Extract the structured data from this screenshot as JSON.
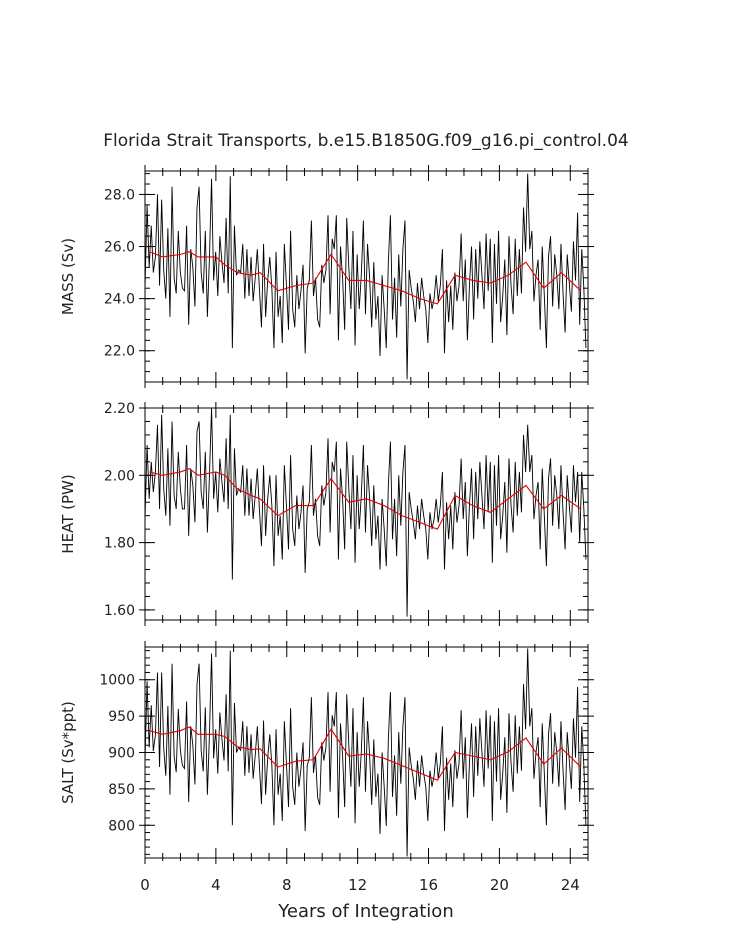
{
  "chart_data": {
    "type": "line",
    "title": "Florida Strait Transports, b.e15.B1850G.f09_g16.pi_control.04",
    "xlabel": "Years of Integration",
    "xlim": [
      0,
      25
    ],
    "xticks": [
      0,
      4,
      8,
      12,
      16,
      20,
      24
    ],
    "colors": {
      "raw": "#000000",
      "smooth": "#e00000"
    },
    "panels": [
      {
        "ylabel": "MASS (Sv)",
        "ylim": [
          20.8,
          28.9
        ],
        "yticks": [
          22.0,
          24.0,
          26.0,
          28.0
        ],
        "yticklabels": [
          "22.0",
          "24.0",
          "26.0",
          "28.0"
        ],
        "series": [
          {
            "values": [
              24.4,
              27.6,
              25.2,
              26.8,
              25.0,
              25.6,
              28.0,
              24.5,
              27.8,
              25.1,
              24.0,
              26.7,
              23.3,
              28.3,
              24.8,
              24.2,
              26.6,
              25.0,
              24.4,
              24.3,
              26.8,
              23.0,
              25.9,
              25.2,
              23.7,
              27.5,
              28.3,
              25.0,
              24.2,
              26.6,
              23.3,
              25.6,
              28.6,
              24.7,
              25.8,
              24.1,
              26.4,
              25.4,
              24.6,
              27.1,
              24.2,
              28.7,
              22.1,
              26.8,
              24.9,
              25.1,
              25.0,
              26.1,
              24.0,
              25.9,
              24.1,
              25.6,
              23.9,
              24.8,
              25.9,
              24.4,
              22.9,
              26.1,
              23.3,
              24.7,
              25.6,
              24.4,
              22.1,
              25.8,
              23.3,
              24.1,
              22.3,
              26.1,
              24.5,
              22.8,
              26.6,
              23.6,
              22.9,
              24.9,
              23.6,
              24.3,
              25.3,
              21.9,
              24.4,
              24.7,
              27.0,
              24.1,
              24.8,
              23.2,
              22.9,
              25.3,
              24.6,
              25.1,
              27.2,
              23.4,
              26.3,
              25.9,
              27.2,
              22.4,
              26.0,
              24.8,
              22.8,
              27.1,
              25.2,
              23.6,
              26.6,
              22.2,
              25.7,
              23.6,
              24.9,
              27.0,
              23.4,
              26.1,
              24.8,
              22.9,
              25.4,
              23.2,
              24.1,
              21.8,
              24.9,
              23.6,
              22.1,
              25.4,
              27.2,
              23.2,
              24.8,
              22.5,
              25.7,
              23.7,
              25.9,
              27.0,
              20.9,
              25.1,
              24.4,
              23.9,
              23.1,
              24.6,
              23.6,
              24.8,
              24.1,
              23.6,
              22.3,
              24.2,
              23.6,
              24.0,
              24.9,
              23.9,
              24.5,
              25.9,
              21.9,
              24.7,
              23.1,
              24.5,
              22.8,
              25.0,
              23.9,
              24.5,
              26.5,
              23.9,
              25.5,
              22.4,
              24.5,
              26.0,
              23.2,
              25.9,
              24.0,
              26.2,
              24.9,
              23.6,
              26.5,
              24.3,
              26.3,
              22.3,
              26.1,
              23.8,
              26.6,
              23.1,
              24.1,
              25.5,
              22.6,
              26.4,
              24.5,
              23.4,
              26.3,
              24.1,
              25.9,
              24.2,
              27.5,
              25.8,
              28.8,
              25.9,
              26.6,
              23.9,
              24.9,
              25.5,
              22.8,
              26.0,
              24.1,
              22.1,
              25.6,
              26.4,
              23.7,
              25.7,
              24.9,
              23.6,
              26.1,
              24.2,
              22.7,
              25.7,
              24.6,
              23.5,
              26.2,
              24.7,
              27.3,
              23.0,
              25.9,
              24.4,
              22.1
            ]
          },
          {
            "x": [
              0.25,
              1.0,
              2.0,
              2.5,
              3.0,
              4.0,
              4.5,
              5.2,
              6.0,
              6.5,
              7.5,
              8.5,
              9.5,
              10.5,
              11.5,
              12.5,
              13.5,
              14.5,
              15.5,
              16.5,
              17.5,
              18.5,
              19.5,
              20.5,
              21.5,
              22.5,
              23.5,
              24.6
            ],
            "values": [
              25.8,
              25.6,
              25.7,
              25.8,
              25.6,
              25.6,
              25.3,
              25.0,
              24.9,
              25.0,
              24.3,
              24.5,
              24.6,
              25.7,
              24.7,
              24.7,
              24.5,
              24.3,
              24.0,
              23.8,
              24.9,
              24.7,
              24.6,
              24.9,
              25.4,
              24.4,
              25.0,
              24.3
            ]
          }
        ]
      },
      {
        "ylabel": "HEAT (PW)",
        "ylim": [
          1.57,
          2.2
        ],
        "yticks": [
          1.6,
          1.8,
          2.0,
          2.2
        ],
        "yticklabels": [
          "1.60",
          "1.80",
          "2.00",
          "2.20"
        ],
        "series": [
          {
            "values": [
              1.87,
              2.09,
              1.93,
              2.04,
              1.95,
              2.01,
              2.15,
              1.9,
              2.18,
              1.96,
              1.88,
              2.08,
              1.85,
              2.16,
              1.94,
              1.9,
              2.07,
              1.96,
              1.9,
              1.9,
              2.09,
              1.82,
              2.02,
              1.97,
              1.86,
              2.13,
              2.16,
              1.95,
              1.9,
              2.07,
              1.83,
              2.0,
              2.2,
              1.93,
              2.01,
              1.89,
              2.05,
              1.98,
              1.92,
              2.11,
              1.9,
              2.18,
              1.69,
              2.08,
              1.94,
              1.96,
              1.95,
              2.03,
              1.88,
              2.02,
              1.88,
              1.99,
              1.87,
              1.94,
              2.02,
              1.9,
              1.79,
              2.03,
              1.82,
              1.93,
              2.0,
              1.91,
              1.73,
              2.0,
              1.82,
              1.88,
              1.75,
              2.03,
              1.91,
              1.78,
              2.06,
              1.84,
              1.79,
              1.94,
              1.84,
              1.89,
              1.97,
              1.71,
              1.9,
              1.92,
              2.09,
              1.88,
              1.93,
              1.82,
              1.79,
              1.97,
              1.91,
              1.95,
              2.11,
              1.83,
              2.04,
              2.01,
              2.1,
              1.75,
              2.02,
              1.93,
              1.78,
              2.1,
              1.96,
              1.84,
              2.06,
              1.74,
              2.0,
              1.84,
              1.94,
              2.09,
              1.83,
              2.03,
              1.93,
              1.79,
              1.97,
              1.81,
              1.88,
              1.72,
              1.93,
              1.84,
              1.73,
              1.97,
              2.1,
              1.81,
              1.93,
              1.76,
              2.0,
              1.85,
              2.01,
              2.09,
              1.58,
              1.95,
              1.9,
              1.86,
              1.81,
              1.91,
              1.84,
              1.93,
              1.88,
              1.84,
              1.75,
              1.89,
              1.84,
              1.87,
              1.93,
              1.86,
              1.91,
              2.01,
              1.72,
              1.92,
              1.81,
              1.91,
              1.78,
              1.95,
              1.86,
              1.91,
              2.05,
              1.87,
              1.98,
              1.76,
              1.91,
              2.02,
              1.81,
              2.01,
              1.87,
              2.04,
              1.94,
              1.84,
              2.06,
              1.89,
              2.04,
              1.74,
              2.03,
              1.85,
              2.06,
              1.81,
              1.88,
              1.98,
              1.77,
              2.05,
              1.91,
              1.83,
              2.04,
              1.88,
              2.01,
              1.89,
              2.12,
              2.01,
              2.15,
              2.01,
              2.06,
              1.87,
              1.94,
              1.98,
              1.78,
              2.02,
              1.88,
              1.73,
              1.99,
              2.05,
              1.85,
              2.0,
              1.94,
              1.84,
              2.03,
              1.89,
              1.78,
              2.0,
              1.91,
              1.83,
              2.03,
              1.92,
              2.01,
              1.8,
              2.01,
              1.9,
              1.75
            ]
          },
          {
            "x": [
              0.25,
              1.0,
              2.0,
              2.5,
              3.0,
              4.0,
              4.5,
              5.2,
              6.0,
              6.5,
              7.5,
              8.5,
              9.5,
              10.5,
              11.5,
              12.5,
              13.5,
              14.5,
              15.5,
              16.5,
              17.5,
              18.5,
              19.5,
              20.5,
              21.5,
              22.5,
              23.5,
              24.6
            ],
            "values": [
              2.01,
              2.0,
              2.01,
              2.02,
              2.0,
              2.01,
              2.0,
              1.96,
              1.94,
              1.93,
              1.88,
              1.91,
              1.91,
              1.99,
              1.92,
              1.93,
              1.91,
              1.88,
              1.86,
              1.84,
              1.94,
              1.91,
              1.89,
              1.93,
              1.97,
              1.9,
              1.94,
              1.9
            ]
          }
        ]
      },
      {
        "ylabel": "SALT (Sv*ppt)",
        "ylim": [
          755,
          1045
        ],
        "yticks": [
          800,
          850,
          900,
          950,
          1000
        ],
        "yticklabels": [
          "800",
          "850",
          "900",
          "950",
          "1000"
        ],
        "series": [
          {
            "values": [
              888,
              998,
              907,
              965,
              902,
              924,
              1010,
              880,
              1010,
              906,
              868,
              964,
              842,
              1022,
              895,
              873,
              960,
              903,
              882,
              878,
              970,
              832,
              936,
              910,
              856,
              994,
              1022,
              903,
              874,
              962,
              842,
              926,
              1036,
              892,
              932,
              871,
              955,
              918,
              889,
              980,
              874,
              1040,
              800,
              968,
              900,
              907,
              903,
              943,
              868,
              936,
              872,
              925,
              864,
              896,
              936,
              882,
              829,
              944,
              842,
              893,
              925,
              882,
              800,
              932,
              842,
              871,
              806,
              943,
              885,
              825,
              961,
              853,
              828,
              900,
              853,
              878,
              914,
              792,
              882,
              893,
              976,
              872,
              896,
              838,
              828,
              914,
              889,
              907,
              983,
              846,
              951,
              936,
              983,
              810,
              940,
              896,
              825,
              980,
              910,
              853,
              961,
              803,
              928,
              853,
              900,
              976,
              846,
              943,
              896,
              828,
              918,
              839,
              871,
              788,
              900,
              853,
              799,
              918,
              983,
              839,
              896,
              813,
              928,
              857,
              936,
              976,
              757,
              907,
              882,
              864,
              835,
              889,
              853,
              896,
              871,
              853,
              806,
              875,
              853,
              868,
              900,
              864,
              885,
              936,
              792,
              893,
              835,
              885,
              825,
              903,
              864,
              885,
              958,
              864,
              921,
              810,
              885,
              940,
              839,
              936,
              868,
              947,
              900,
              853,
              958,
              878,
              951,
              806,
              943,
              860,
              961,
              835,
              871,
              921,
              817,
              954,
              885,
              846,
              951,
              871,
              936,
              875,
              994,
              932,
              1043,
              936,
              961,
              864,
              900,
              921,
              825,
              940,
              871,
              800,
              925,
              954,
              857,
              928,
              900,
              853,
              943,
              875,
              821,
              928,
              889,
              850,
              947,
              893,
              990,
              832,
              936,
              882,
              800
            ]
          },
          {
            "x": [
              0.25,
              1.0,
              2.0,
              2.5,
              3.0,
              4.0,
              4.5,
              5.2,
              6.0,
              6.5,
              7.5,
              8.5,
              9.5,
              10.5,
              11.5,
              12.5,
              13.5,
              14.5,
              15.5,
              16.5,
              17.5,
              18.5,
              19.5,
              20.5,
              21.5,
              22.5,
              23.5,
              24.6
            ],
            "values": [
              930,
              925,
              930,
              935,
              925,
              925,
              922,
              908,
              904,
              905,
              880,
              888,
              890,
              932,
              895,
              898,
              892,
              882,
              872,
              862,
              900,
              895,
              890,
              901,
              920,
              884,
              906,
              880
            ]
          }
        ]
      }
    ]
  }
}
